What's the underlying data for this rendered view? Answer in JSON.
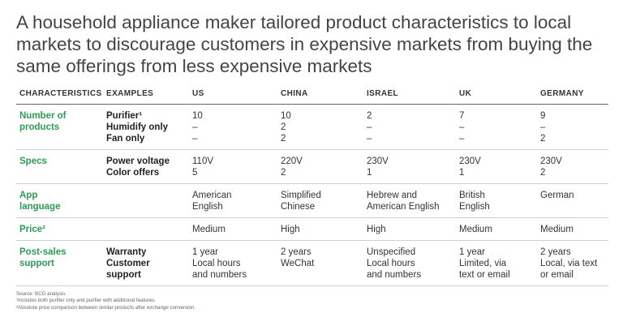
{
  "title": "A household appliance maker tailored product characteristics to local markets to discourage customers in expensive markets from buying the same offerings from less expensive markets",
  "headers": [
    "CHARACTERISTICS",
    "EXAMPLES",
    "US",
    "CHINA",
    "ISRAEL",
    "UK",
    "GERMANY"
  ],
  "rows": [
    {
      "characteristic": [
        "Number of",
        "products"
      ],
      "examples": [
        "Purifier¹",
        "Humidify only",
        "Fan only"
      ],
      "us": [
        "10",
        "–",
        "–"
      ],
      "china": [
        "10",
        "2",
        "2"
      ],
      "israel": [
        "2",
        "–",
        "–"
      ],
      "uk": [
        "7",
        "–",
        "–"
      ],
      "germany": [
        "9",
        "–",
        "2"
      ]
    },
    {
      "characteristic": [
        "Specs"
      ],
      "examples": [
        "Power voltage",
        "Color offers"
      ],
      "us": [
        "110V",
        "5"
      ],
      "china": [
        "220V",
        "2"
      ],
      "israel": [
        "230V",
        "1"
      ],
      "uk": [
        "230V",
        "1"
      ],
      "germany": [
        "230V",
        "2"
      ]
    },
    {
      "characteristic": [
        "App",
        "language"
      ],
      "examples": [],
      "us": [
        "American",
        "English"
      ],
      "china": [
        "Simplified",
        "Chinese"
      ],
      "israel": [
        "Hebrew and",
        "American English"
      ],
      "uk": [
        "British",
        "English"
      ],
      "germany": [
        "German"
      ]
    },
    {
      "characteristic": [
        "Price²"
      ],
      "examples": [],
      "us": [
        "Medium"
      ],
      "china": [
        "High"
      ],
      "israel": [
        "High"
      ],
      "uk": [
        "Medium"
      ],
      "germany": [
        "Medium"
      ]
    },
    {
      "characteristic": [
        "Post-sales",
        "support"
      ],
      "examples": [
        "Warranty",
        "Customer",
        "support"
      ],
      "us": [
        "1 year",
        "Local hours",
        "and numbers"
      ],
      "china": [
        "2 years",
        "WeChat"
      ],
      "israel": [
        "Unspecified",
        "Local hours",
        "and numbers"
      ],
      "uk": [
        "1 year",
        "Limited, via",
        "text or email"
      ],
      "germany": [
        "2 years",
        "Local, via text",
        "or email"
      ]
    }
  ],
  "footnotes": [
    "Source: BCG analysis.",
    "¹Includes both purifier only and purifier with additional features.",
    "²Absolute price comparison between similar products after exchange conversion."
  ]
}
